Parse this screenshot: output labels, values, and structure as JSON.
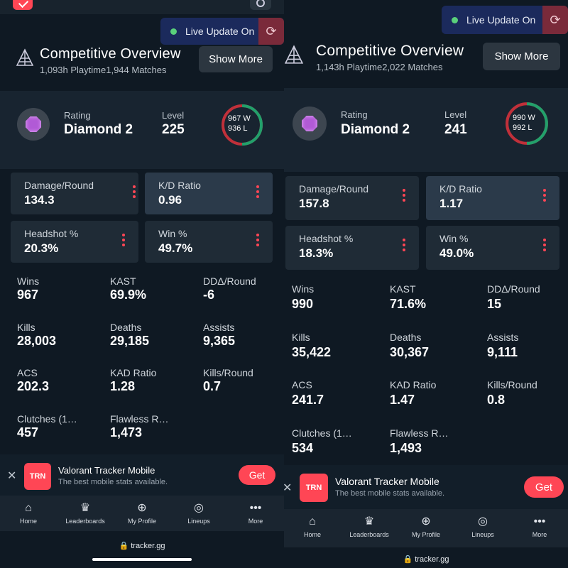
{
  "left": {
    "live_update": "Live Update On",
    "title": "Competitive Overview",
    "playtime": "1,093h Playtime",
    "matches": "1,944 Matches",
    "show_more": "Show More",
    "rating_label": "Rating",
    "rating_value": "Diamond 2",
    "level_label": "Level",
    "level_value": "225",
    "wins_short": "967",
    "losses_short": "936",
    "w": "W",
    "l": "L",
    "boxes": [
      {
        "label": "Damage/Round",
        "value": "134.3"
      },
      {
        "label": "K/D Ratio",
        "value": "0.96"
      },
      {
        "label": "Headshot %",
        "value": "20.3%"
      },
      {
        "label": "Win %",
        "value": "49.7%"
      }
    ],
    "stats": [
      {
        "label": "Wins",
        "value": "967"
      },
      {
        "label": "KAST",
        "value": "69.9%"
      },
      {
        "label": "DDΔ/Round",
        "value": "-6"
      },
      {
        "label": "Kills",
        "value": "28,003"
      },
      {
        "label": "Deaths",
        "value": "29,185"
      },
      {
        "label": "Assists",
        "value": "9,365"
      },
      {
        "label": "ACS",
        "value": "202.3"
      },
      {
        "label": "KAD Ratio",
        "value": "1.28"
      },
      {
        "label": "Kills/Round",
        "value": "0.7"
      },
      {
        "label": "Clutches (1…",
        "value": "457"
      },
      {
        "label": "Flawless R…",
        "value": "1,473"
      }
    ]
  },
  "right": {
    "live_update": "Live Update On",
    "title": "Competitive Overview",
    "playtime": "1,143h Playtime",
    "matches": "2,022 Matches",
    "show_more": "Show More",
    "rating_label": "Rating",
    "rating_value": "Diamond 2",
    "level_label": "Level",
    "level_value": "241",
    "wins_short": "990",
    "losses_short": "992",
    "w": "W",
    "l": "L",
    "boxes": [
      {
        "label": "Damage/Round",
        "value": "157.8"
      },
      {
        "label": "K/D Ratio",
        "value": "1.17"
      },
      {
        "label": "Headshot %",
        "value": "18.3%"
      },
      {
        "label": "Win %",
        "value": "49.0%"
      }
    ],
    "stats": [
      {
        "label": "Wins",
        "value": "990"
      },
      {
        "label": "KAST",
        "value": "71.6%"
      },
      {
        "label": "DDΔ/Round",
        "value": "15"
      },
      {
        "label": "Kills",
        "value": "35,422"
      },
      {
        "label": "Deaths",
        "value": "30,367"
      },
      {
        "label": "Assists",
        "value": "9,111"
      },
      {
        "label": "ACS",
        "value": "241.7"
      },
      {
        "label": "KAD Ratio",
        "value": "1.47"
      },
      {
        "label": "Kills/Round",
        "value": "0.8"
      },
      {
        "label": "Clutches (1…",
        "value": "534"
      },
      {
        "label": "Flawless R…",
        "value": "1,493"
      }
    ]
  },
  "banner": {
    "logo": "TRN",
    "title": "Valorant Tracker Mobile",
    "subtitle": "The best mobile stats available.",
    "get": "Get"
  },
  "nav": [
    {
      "label": "Home",
      "icon": "home-icon"
    },
    {
      "label": "Leaderboards",
      "icon": "leaderboard-icon"
    },
    {
      "label": "My Profile",
      "icon": "plus-circle-icon"
    },
    {
      "label": "Lineups",
      "icon": "compass-icon"
    },
    {
      "label": "More",
      "icon": "more-icon"
    }
  ],
  "url": "tracker.gg",
  "colors": {
    "accent": "#ff4655",
    "win": "#22a06b",
    "loss": "#c0303a",
    "bg": "#0f1923"
  }
}
